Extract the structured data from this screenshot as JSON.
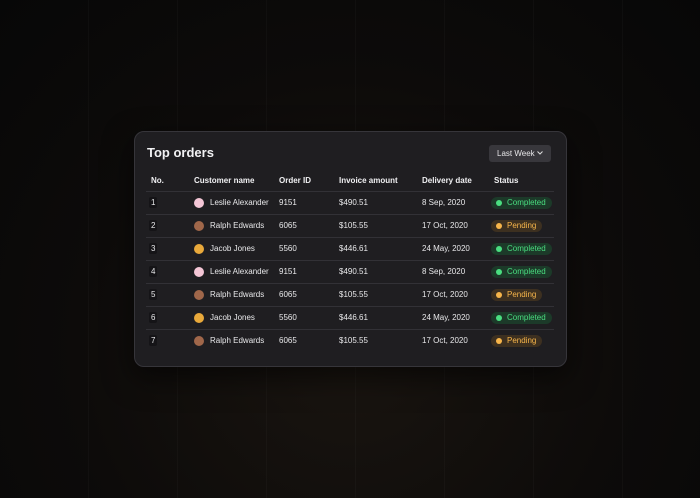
{
  "header": {
    "title": "Top orders",
    "button": "Last Week"
  },
  "table": {
    "columns": [
      "No.",
      "Customer name",
      "Order ID",
      "Invoice amount",
      "Delivery date",
      "Status"
    ],
    "rows": [
      [
        "1",
        "Leslie Alexander",
        "9151",
        "$490.51",
        "8 Sep, 2020",
        "Completed"
      ],
      [
        "2",
        "Ralph Edwards",
        "6065",
        "$105.55",
        "17 Oct, 2020",
        "Pending"
      ],
      [
        "3",
        "Jacob Jones",
        "5560",
        "$446.61",
        "24 May, 2020",
        "Completed"
      ],
      [
        "4",
        "Leslie Alexander",
        "9151",
        "$490.51",
        "8 Sep, 2020",
        "Completed"
      ],
      [
        "5",
        "Ralph Edwards",
        "6065",
        "$105.55",
        "17 Oct, 2020",
        "Pending"
      ],
      [
        "6",
        "Jacob Jones",
        "5560",
        "$446.61",
        "24 May, 2020",
        "Completed"
      ],
      [
        "7",
        "Ralph Edwards",
        "6065",
        "$105.55",
        "17 Oct, 2020",
        "Pending"
      ]
    ]
  }
}
